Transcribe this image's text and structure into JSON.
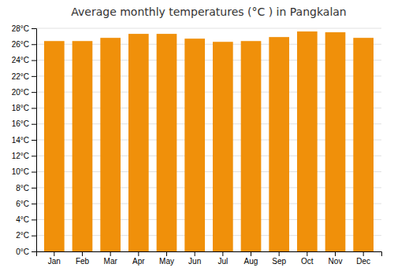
{
  "chart_data": {
    "type": "bar",
    "title": "Average monthly temperatures (°C ) in Pangkalan",
    "categories": [
      "Jan",
      "Feb",
      "Mar",
      "Apr",
      "May",
      "Jun",
      "Jul",
      "Aug",
      "Sep",
      "Oct",
      "Nov",
      "Dec"
    ],
    "values": [
      26.4,
      26.4,
      26.8,
      27.3,
      27.3,
      26.7,
      26.3,
      26.4,
      26.9,
      27.6,
      27.5,
      26.8
    ],
    "color": "#F0900A",
    "ylim": [
      0,
      28
    ],
    "yticks": [
      {
        "value": 0,
        "label": "0°C"
      },
      {
        "value": 2,
        "label": "2°C"
      },
      {
        "value": 4,
        "label": "4°C"
      },
      {
        "value": 6,
        "label": "6°C"
      },
      {
        "value": 8,
        "label": "8°C"
      },
      {
        "value": 10,
        "label": "10°C"
      },
      {
        "value": 12,
        "label": "12°C"
      },
      {
        "value": 14,
        "label": "14°C"
      },
      {
        "value": 16,
        "label": "16°C"
      },
      {
        "value": 18,
        "label": "18°C"
      },
      {
        "value": 20,
        "label": "20°C"
      },
      {
        "value": 22,
        "label": "22°C"
      },
      {
        "value": 24,
        "label": "24°C"
      },
      {
        "value": 26,
        "label": "26°C"
      },
      {
        "value": 28,
        "label": "28°C"
      }
    ],
    "grid": true
  }
}
